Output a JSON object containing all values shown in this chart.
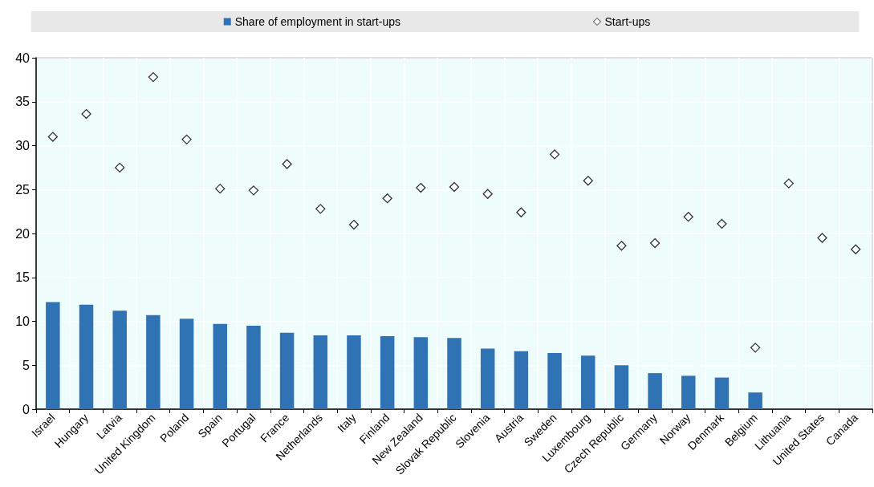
{
  "chart_data": {
    "type": "bar",
    "categories": [
      "Israel",
      "Hungary",
      "Latvia",
      "United Kingdom",
      "Poland",
      "Spain",
      "Portugal",
      "France",
      "Netherlands",
      "Italy",
      "Finland",
      "New Zealand",
      "Slovak Republic",
      "Slovenia",
      "Austria",
      "Sweden",
      "Luxembourg",
      "Czech Republic",
      "Germany",
      "Norway",
      "Denmark",
      "Belgium",
      "Lithuania",
      "United States",
      "Canada"
    ],
    "series": [
      {
        "name": "Share of employment in start-ups",
        "color": "#3073b5",
        "values": [
          12.2,
          11.9,
          11.2,
          10.7,
          10.3,
          9.7,
          9.5,
          8.7,
          8.4,
          8.4,
          8.3,
          8.2,
          8.1,
          6.9,
          6.6,
          6.4,
          6.1,
          5.0,
          4.1,
          3.8,
          3.6,
          1.9,
          null,
          null,
          null
        ]
      },
      {
        "name": "Start-ups",
        "type": "scatter",
        "marker": "diamond",
        "color": "#000000",
        "values": [
          31.0,
          33.6,
          27.5,
          37.8,
          30.7,
          25.1,
          24.9,
          27.9,
          22.8,
          21.0,
          24.0,
          25.2,
          25.3,
          24.5,
          22.4,
          29.0,
          26.0,
          18.6,
          18.9,
          21.9,
          21.1,
          7.0,
          25.7,
          19.5,
          18.2
        ]
      }
    ],
    "ylim": [
      0,
      40
    ],
    "yticks": [
      0,
      5,
      10,
      15,
      20,
      25,
      30,
      35,
      40
    ],
    "grid": true,
    "legend": "top"
  }
}
